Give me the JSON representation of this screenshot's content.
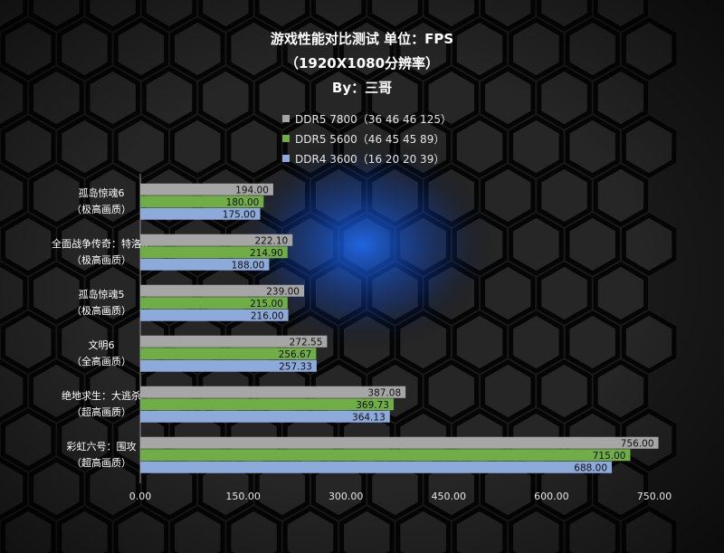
{
  "title": {
    "line1": "游戏性能对比测试 单位：FPS",
    "line2": "（1920X1080分辨率）",
    "line3": "By：三哥"
  },
  "legend": [
    {
      "label": "DDR5 7800（36 46 46 125）",
      "color": "#a6a6a6"
    },
    {
      "label": "DDR5 5600（46 45 45 89）",
      "color": "#70ad47"
    },
    {
      "label": "DDR4 3600（16 20 20 39）",
      "color": "#8eaadb"
    }
  ],
  "chart_data": {
    "type": "bar",
    "orientation": "horizontal",
    "categories": [
      [
        "孤岛惊魂6",
        "（极高画质）"
      ],
      [
        "全面战争传奇：特洛伊",
        "（极高画质）"
      ],
      [
        "孤岛惊魂5",
        "（极高画质）"
      ],
      [
        "文明6",
        "（全高画质）"
      ],
      [
        "绝地求生：大逃杀",
        "（超高画质）"
      ],
      [
        "彩虹六号：围攻",
        "（超高画质）"
      ]
    ],
    "series": [
      {
        "name": "DDR5 7800（36 46 46 125）",
        "color": "#a6a6a6",
        "values": [
          194.0,
          222.1,
          239.0,
          272.55,
          387.08,
          756.0
        ]
      },
      {
        "name": "DDR5 5600（46 45 45 89）",
        "color": "#70ad47",
        "values": [
          180.0,
          214.9,
          215.0,
          256.67,
          369.73,
          715.0
        ]
      },
      {
        "name": "DDR4 3600（16 20 20 39）",
        "color": "#8eaadb",
        "values": [
          175.0,
          188.0,
          216.0,
          257.33,
          364.13,
          688.0
        ]
      }
    ],
    "xlim": [
      0,
      750
    ],
    "xticks": [
      "0.00",
      "150.00",
      "300.00",
      "450.00",
      "600.00",
      "750.00"
    ],
    "value_labels": [
      [
        "194.00",
        "222.10",
        "239.00",
        "272.55",
        "387.08",
        "756.00"
      ],
      [
        "180.00",
        "214.90",
        "215.00",
        "256.67",
        "369.73",
        "715.00"
      ],
      [
        "175.00",
        "188.00",
        "216.00",
        "257.33",
        "364.13",
        "688.00"
      ]
    ],
    "legend_position": "top"
  }
}
